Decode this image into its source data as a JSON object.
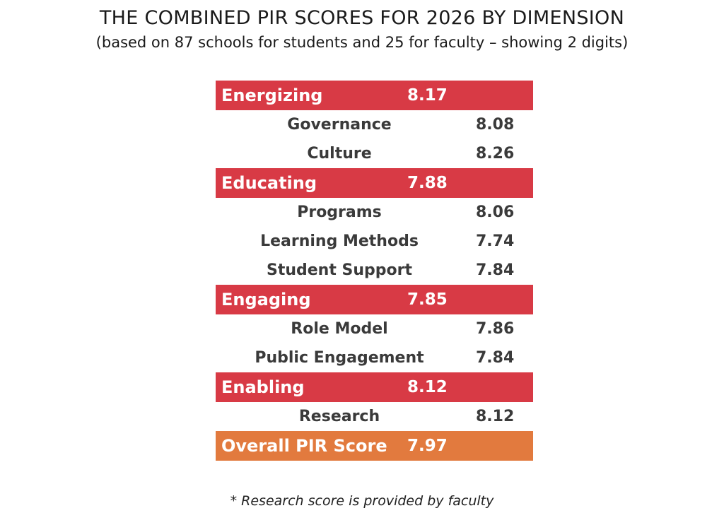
{
  "title": "THE COMBINED PIR SCORES FOR 2026 BY DIMENSION",
  "subtitle": "(based on 87 schools for students and 25 for faculty – showing 2 digits)",
  "footnote": "* Research score is provided by faculty",
  "colors": {
    "dimension_row": "#d83a45",
    "overall_row": "#e27a3e"
  },
  "chart_data": {
    "type": "table",
    "rows": [
      {
        "kind": "dimension",
        "label": "Energizing",
        "value": "8.17"
      },
      {
        "kind": "sub",
        "label": "Governance",
        "value": "8.08"
      },
      {
        "kind": "sub",
        "label": "Culture",
        "value": "8.26"
      },
      {
        "kind": "dimension",
        "label": "Educating",
        "value": "7.88"
      },
      {
        "kind": "sub",
        "label": "Programs",
        "value": "8.06"
      },
      {
        "kind": "sub",
        "label": "Learning Methods",
        "value": "7.74"
      },
      {
        "kind": "sub",
        "label": "Student Support",
        "value": "7.84"
      },
      {
        "kind": "dimension",
        "label": "Engaging",
        "value": "7.85"
      },
      {
        "kind": "sub",
        "label": "Role Model",
        "value": "7.86"
      },
      {
        "kind": "sub",
        "label": "Public Engagement",
        "value": "7.84"
      },
      {
        "kind": "dimension",
        "label": "Enabling",
        "value": "8.12"
      },
      {
        "kind": "sub",
        "label": "Research",
        "value": "8.12"
      },
      {
        "kind": "overall",
        "label": "Overall PIR Score",
        "value": "7.97"
      }
    ]
  }
}
